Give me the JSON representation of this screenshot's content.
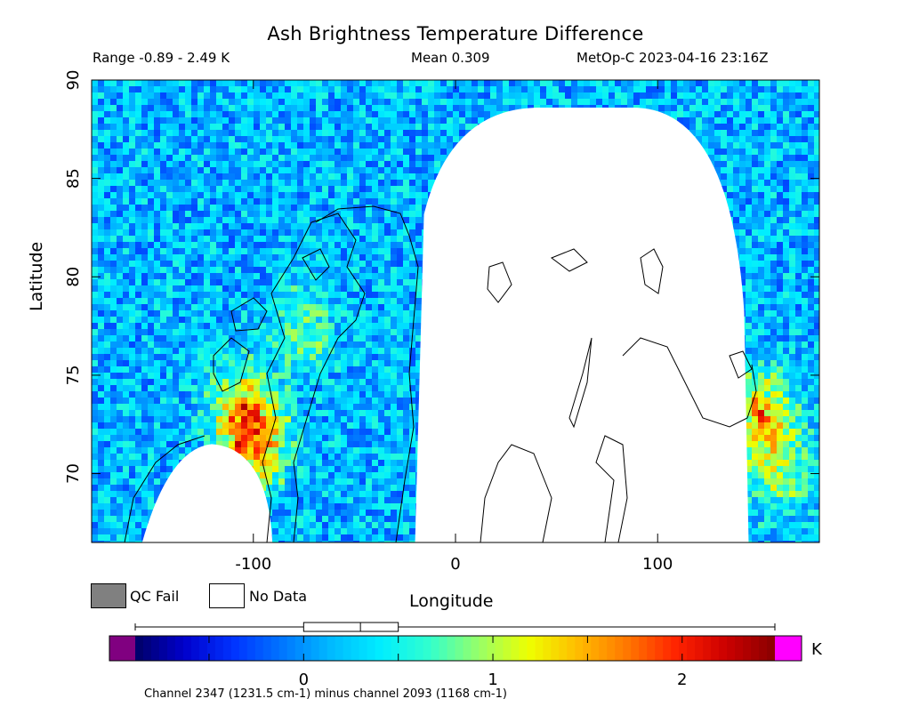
{
  "header": {
    "title": "Ash Brightness Temperature Difference",
    "range": "Range -0.89 - 2.49 K",
    "mean": "Mean 0.309",
    "satellite_time": "MetOp-C 2023-04-16 23:16Z"
  },
  "legend": {
    "qc_fail": "QC Fail",
    "no_data": "No Data",
    "qc_fail_color": "#808080",
    "no_data_color": "#ffffff"
  },
  "colorbar": {
    "unit": "K",
    "ticks": [
      "0",
      "1",
      "2"
    ],
    "min_value": -0.89,
    "max_value": 2.49,
    "under_color": "#800080",
    "over_color": "#ff00ff",
    "colors": [
      "#000066",
      "#0000cc",
      "#0033ff",
      "#0077ff",
      "#00bbff",
      "#00eeff",
      "#33ffcc",
      "#99ff66",
      "#eeff00",
      "#ffbb00",
      "#ff7700",
      "#ff2200",
      "#cc0000",
      "#880000"
    ],
    "boxplot": {
      "min": -0.89,
      "q1": 0.0,
      "median": 0.3,
      "q3": 0.5,
      "max": 2.49
    }
  },
  "footnote": "Channel 2347 (1231.5 cm-1) minus channel 2093 (1168 cm-1)",
  "chart_data": {
    "type": "heatmap",
    "title": "Ash Brightness Temperature Difference",
    "xlabel": "Longitude",
    "ylabel": "Latitude",
    "xlim": [
      -180,
      180
    ],
    "ylim": [
      66.5,
      90
    ],
    "x_ticks": [
      -100,
      0,
      100
    ],
    "x_tick_labels": [
      "-100",
      "0",
      "100"
    ],
    "y_ticks": [
      70,
      75,
      80,
      85,
      90
    ],
    "y_tick_labels": [
      "70",
      "75",
      "80",
      "85",
      "90"
    ],
    "value_range": [
      -0.89,
      2.49
    ],
    "mean": 0.309,
    "units": "K",
    "no_data_regions": [
      {
        "name": "orbit-gap",
        "lon_range": [
          -20,
          145
        ],
        "lat_range": [
          66.5,
          88.6
        ]
      },
      {
        "name": "swath-gap-southwest",
        "lon_range": [
          -155,
          -95
        ],
        "lat_range": [
          66.5,
          71.5
        ]
      }
    ],
    "hotspots": [
      {
        "lon": -100,
        "lat": 71.5,
        "value": 2.1
      },
      {
        "lon": -105,
        "lat": 73.5,
        "value": 1.4
      },
      {
        "lon": -75,
        "lat": 77.5,
        "value": 1.0
      },
      {
        "lon": 150,
        "lat": 73.0,
        "value": 1.9
      },
      {
        "lon": 160,
        "lat": 70.0,
        "value": 1.2
      }
    ]
  }
}
